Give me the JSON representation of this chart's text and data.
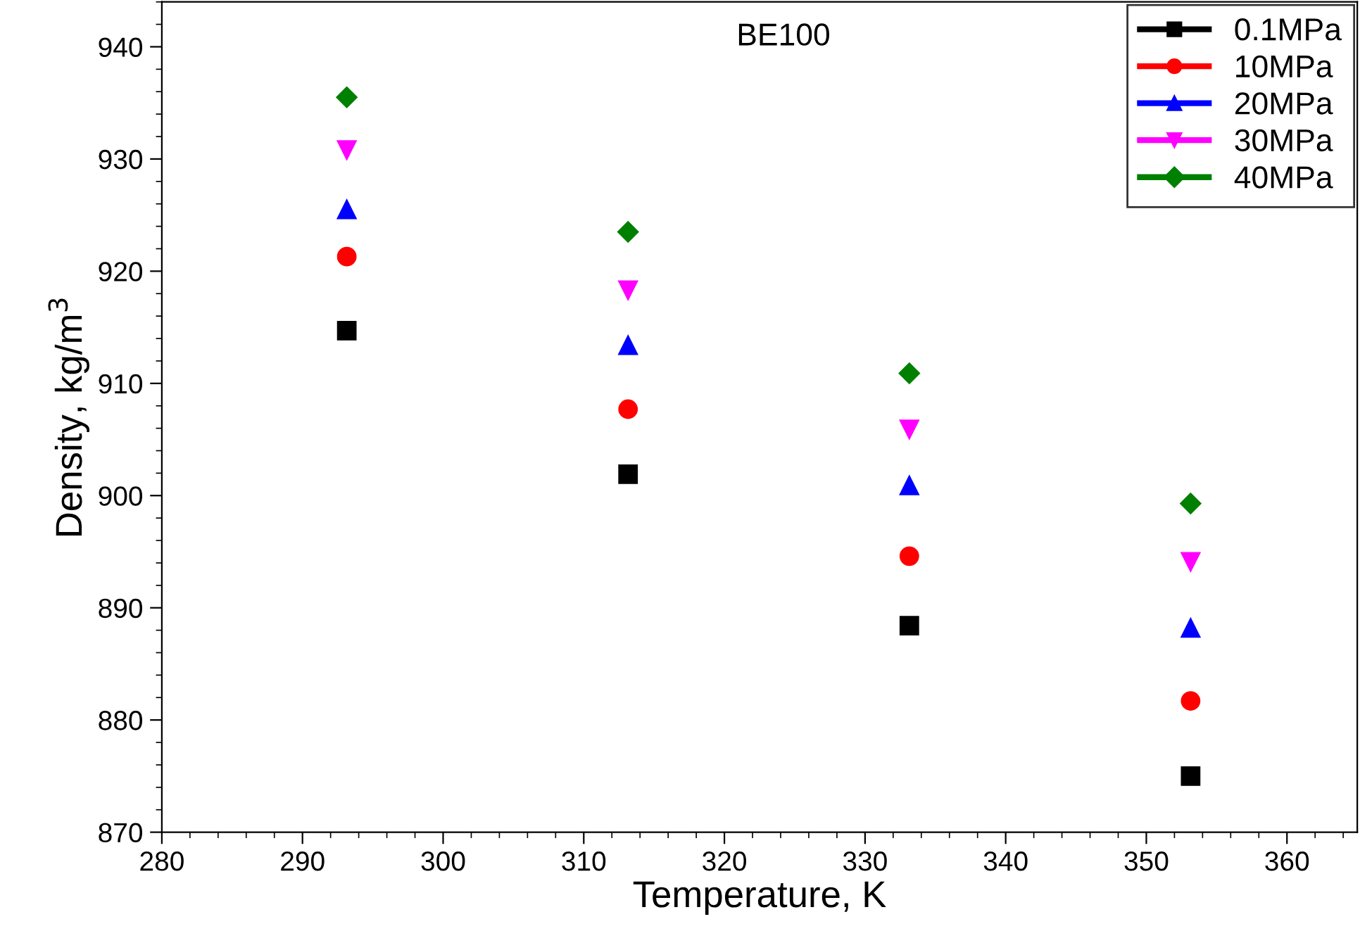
{
  "chart_data": {
    "type": "scatter",
    "title": "BE100",
    "xlabel": "Temperature, K",
    "ylabel": "Density, kg/m$^{3}$",
    "x": [
      293.15,
      313.15,
      333.15,
      353.15
    ],
    "series": [
      {
        "name": "0.1MPa",
        "color": "#000000",
        "marker": "square",
        "values": [
          914.7,
          901.9,
          888.4,
          875.0
        ]
      },
      {
        "name": "10MPa",
        "color": "#ff0000",
        "marker": "circle",
        "values": [
          921.3,
          907.7,
          894.6,
          881.7
        ]
      },
      {
        "name": "20MPa",
        "color": "#0000ff",
        "marker": "triangle",
        "values": [
          925.5,
          913.4,
          900.9,
          888.2
        ]
      },
      {
        "name": "30MPa",
        "color": "#ff00ff",
        "marker": "triangle_down",
        "values": [
          930.8,
          918.3,
          905.9,
          894.1
        ]
      },
      {
        "name": "40MPa",
        "color": "#008000",
        "marker": "diamond",
        "values": [
          935.5,
          923.5,
          910.9,
          899.3
        ]
      }
    ],
    "xlim": [
      280,
      365
    ],
    "xticks": [
      280,
      290,
      300,
      310,
      320,
      330,
      340,
      350,
      360
    ],
    "ylim": [
      870,
      944
    ],
    "yticks": [
      870,
      880,
      890,
      900,
      910,
      920,
      930,
      940
    ],
    "grid": false,
    "legend": "top right"
  }
}
